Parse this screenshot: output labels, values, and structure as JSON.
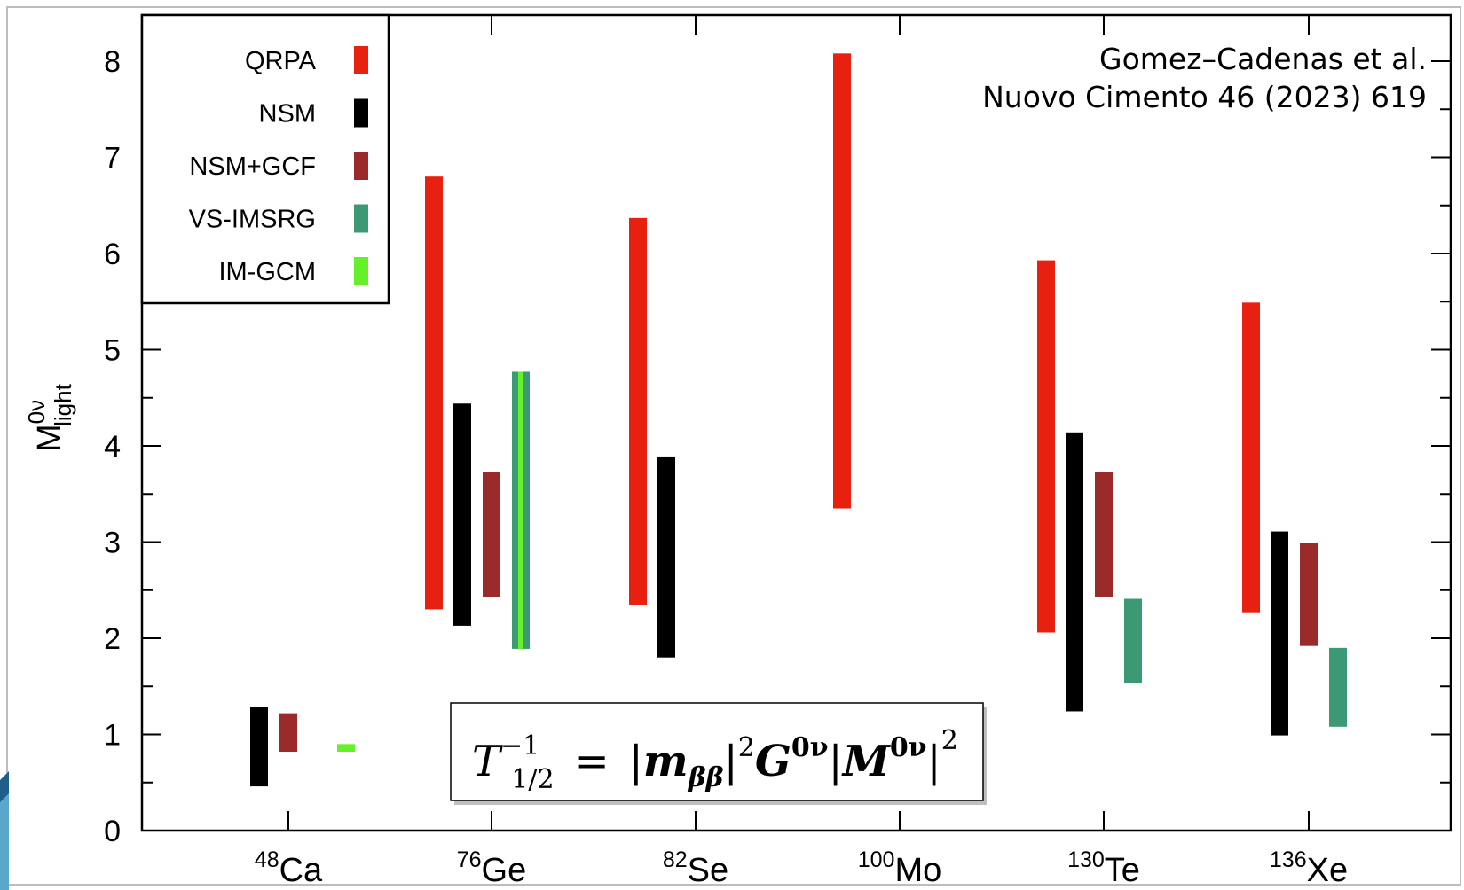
{
  "chart_data": {
    "type": "bar",
    "subtype": "range-bars",
    "ylabel": "M",
    "ylabel_sup": "0ν",
    "ylabel_sub": "light",
    "ylim": [
      0,
      8.5
    ],
    "yticks": [
      "0",
      "1",
      "2",
      "3",
      "4",
      "5",
      "6",
      "7",
      "8"
    ],
    "categories": [
      {
        "sup": "48",
        "base": "Ca"
      },
      {
        "sup": "76",
        "base": "Ge"
      },
      {
        "sup": "82",
        "base": "Se"
      },
      {
        "sup": "100",
        "base": "Mo"
      },
      {
        "sup": "130",
        "base": "Te"
      },
      {
        "sup": "136",
        "base": "Xe"
      }
    ],
    "legend_position": "top-left",
    "grid": false,
    "series": [
      {
        "name": "QRPA",
        "color": "#e8200f",
        "ranges": [
          null,
          [
            2.3,
            6.8
          ],
          [
            2.35,
            6.37
          ],
          [
            3.35,
            8.08
          ],
          [
            2.06,
            5.93
          ],
          [
            2.27,
            5.49
          ]
        ]
      },
      {
        "name": "NSM",
        "color": "#000000",
        "ranges": [
          [
            0.46,
            1.29
          ],
          [
            2.13,
            4.44
          ],
          [
            1.8,
            3.89
          ],
          null,
          [
            1.24,
            4.14
          ],
          [
            0.99,
            3.11
          ]
        ]
      },
      {
        "name": "NSM+GCF",
        "color": "#9b2a2a",
        "ranges": [
          [
            0.82,
            1.22
          ],
          [
            2.43,
            3.73
          ],
          null,
          null,
          [
            2.43,
            3.73
          ],
          [
            1.92,
            2.99
          ]
        ]
      },
      {
        "name": "VS-IMSRG",
        "color": "#3b9a74",
        "ranges": [
          null,
          [
            1.89,
            4.77
          ],
          null,
          null,
          [
            1.53,
            2.41
          ],
          [
            1.08,
            1.9
          ]
        ]
      },
      {
        "name": "IM-GCM",
        "color": "#66f02a",
        "ranges": [
          [
            0.82,
            0.9
          ],
          [
            1.89,
            4.77
          ],
          null,
          null,
          null,
          null
        ]
      }
    ],
    "annotations": {
      "citation_line1": "Gomez–Cadenas et al.",
      "citation_line2": "Nuovo Cimento 46 (2023) 619"
    },
    "formula": {
      "lhs_base": "T",
      "lhs_sup": "−1",
      "lhs_sub": "1/2",
      "equals": "=",
      "m_base": "m",
      "m_sub": "ββ",
      "exp": "2",
      "G_base": "G",
      "G_sup": "0ν",
      "M_base": "M",
      "M_sup": "0ν",
      "M_exp": "2"
    }
  }
}
